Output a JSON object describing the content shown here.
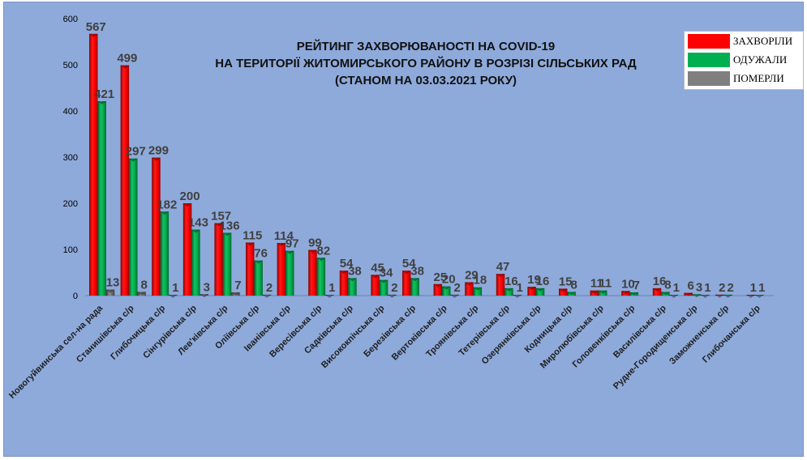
{
  "chart_data": {
    "type": "bar",
    "title": [
      "РЕЙТИНГ ЗАХВОРЮВАНОСТІ НА COVID-19",
      "НА ТЕРИТОРІЇ ЖИТОМИРСЬКОГО РАЙОНУ В РОЗРІЗІ СІЛЬСЬКИХ РАД",
      "(СТАНОМ НА 03.03.2021 РОКУ)"
    ],
    "categories": [
      "Новогуйвинська сел-на рада",
      "Станишівська с/р",
      "Глибочицька с/р",
      "Сінгурівська с/р",
      "Лев'ківська с/р",
      "Оліївська с/р",
      "Іванівська с/р",
      "Вересівська с/р",
      "Садківська с/р",
      "Висококпічська с/р",
      "Березівська с/р",
      "Вертоківська с/р",
      "Троянівська с/р",
      "Тетерівська  с/р",
      "Озерянківська с/р",
      "Кодницька с/р",
      "Миролюбівська с/р",
      "Головенківська с/р",
      "Василівська с/р",
      "Рудне-Городищенська с/р",
      "Заможненська с/р",
      "Глибочанська с/р"
    ],
    "series": [
      {
        "name": "ЗАХВОРІЛИ",
        "color": "#ff0000",
        "values": [
          567,
          499,
          299,
          200,
          157,
          115,
          114,
          99,
          54,
          45,
          54,
          25,
          29,
          47,
          19,
          15,
          11,
          10,
          16,
          6,
          2,
          1
        ]
      },
      {
        "name": "ОДУЖАЛИ",
        "color": "#00b050",
        "values": [
          421,
          297,
          182,
          143,
          136,
          76,
          97,
          82,
          38,
          34,
          38,
          20,
          18,
          16,
          16,
          8,
          11,
          7,
          8,
          3,
          2,
          1
        ]
      },
      {
        "name": "ПОМЕРЛИ",
        "color": "#7f7f7f",
        "values": [
          13,
          8,
          1,
          3,
          7,
          2,
          null,
          1,
          null,
          2,
          null,
          2,
          null,
          1,
          null,
          null,
          null,
          null,
          1,
          1,
          null,
          null
        ]
      }
    ],
    "y_ticks": [
      "0",
      "100",
      "200",
      "300",
      "400",
      "500",
      "600"
    ],
    "ylim": [
      0,
      600
    ],
    "grid": false,
    "legend_position": "top-right"
  }
}
